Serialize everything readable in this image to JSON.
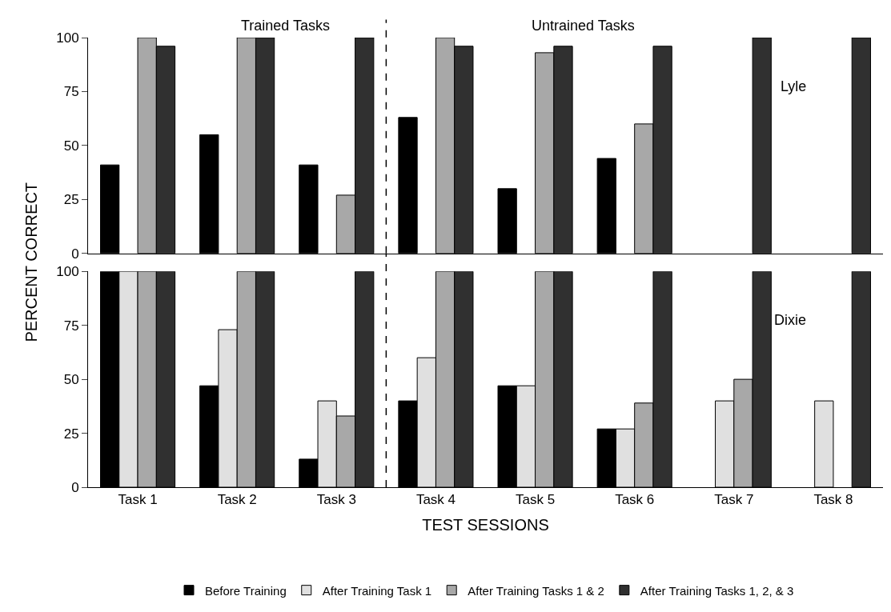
{
  "chart_data": [
    {
      "type": "bar",
      "categories": [
        null,
        null,
        null,
        null,
        null,
        null,
        null,
        null
      ],
      "ylim": [
        0,
        100
      ],
      "yticks": [
        0,
        25,
        50,
        75,
        100
      ],
      "tick_labels": "y",
      "legend": false,
      "annotations": [
        "Trained Tasks",
        "Untrained Tasks",
        "Lyle"
      ],
      "series": [
        {
          "color": "#000000",
          "values": [
            41,
            55,
            41,
            63,
            30,
            44,
            null,
            null
          ]
        },
        {
          "color": "#e0e0e0",
          "values": [
            null,
            null,
            null,
            null,
            null,
            null,
            null,
            null
          ]
        },
        {
          "color": "#a8a8a8",
          "values": [
            100,
            100,
            27,
            100,
            93,
            60,
            null,
            null
          ]
        },
        {
          "color": "#303030",
          "values": [
            96,
            100,
            100,
            96,
            96,
            96,
            100,
            100
          ]
        }
      ]
    },
    {
      "type": "bar",
      "categories": [
        "Task 1",
        "Task 2",
        "Task 3",
        "Task 4",
        "Task 5",
        "Task 6",
        "Task 7",
        "Task 8"
      ],
      "ylim": [
        0,
        100
      ],
      "yticks": [
        0,
        25,
        50,
        75,
        100
      ],
      "legend": "bottom",
      "xlabel": "TEST SESSIONS",
      "ylabel": "PERCENT CORRECT",
      "annotations": [
        "Dixie"
      ],
      "series": [
        {
          "name": "Before Training",
          "color": "#000000",
          "values": [
            100,
            47,
            13,
            40,
            47,
            27,
            null,
            null
          ]
        },
        {
          "name": "After Training Task 1",
          "color": "#e0e0e0",
          "values": [
            100,
            73,
            40,
            60,
            47,
            27,
            40,
            40
          ]
        },
        {
          "name": "After Training Tasks 1 & 2",
          "color": "#a8a8a8",
          "values": [
            100,
            100,
            33,
            100,
            100,
            39,
            50,
            null
          ]
        },
        {
          "name": "After Training Tasks 1, 2, & 3",
          "color": "#303030",
          "values": [
            100,
            100,
            100,
            100,
            100,
            100,
            100,
            100
          ]
        }
      ]
    }
  ]
}
